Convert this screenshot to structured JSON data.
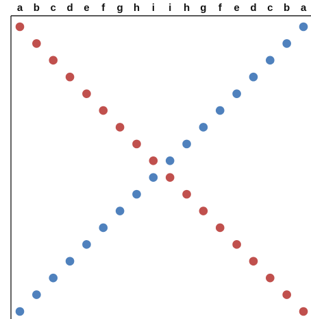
{
  "chart_data": {
    "type": "scatter",
    "title": "",
    "xlabel": "",
    "ylabel": "",
    "grid": false,
    "x_tick_labels": [
      "a",
      "b",
      "c",
      "d",
      "e",
      "f",
      "g",
      "h",
      "i",
      "i",
      "h",
      "g",
      "f",
      "e",
      "d",
      "c",
      "b",
      "a"
    ],
    "xlim": [
      0.5,
      18.5
    ],
    "ylim": [
      0.5,
      18.5
    ],
    "series": [
      {
        "color": "#c0504d",
        "x": [
          1,
          2,
          3,
          4,
          5,
          6,
          7,
          8,
          9,
          10,
          11,
          12,
          13,
          14,
          15,
          16,
          17,
          18
        ],
        "y": [
          18,
          17,
          16,
          15,
          14,
          13,
          12,
          11,
          10,
          9,
          8,
          7,
          6,
          5,
          4,
          3,
          2,
          1
        ]
      },
      {
        "color": "#4f81bd",
        "x": [
          1,
          2,
          3,
          4,
          5,
          6,
          7,
          8,
          9,
          10,
          11,
          12,
          13,
          14,
          15,
          16,
          17,
          18
        ],
        "y": [
          1,
          2,
          3,
          4,
          5,
          6,
          7,
          8,
          9,
          10,
          11,
          12,
          13,
          14,
          15,
          16,
          17,
          18
        ]
      }
    ]
  }
}
